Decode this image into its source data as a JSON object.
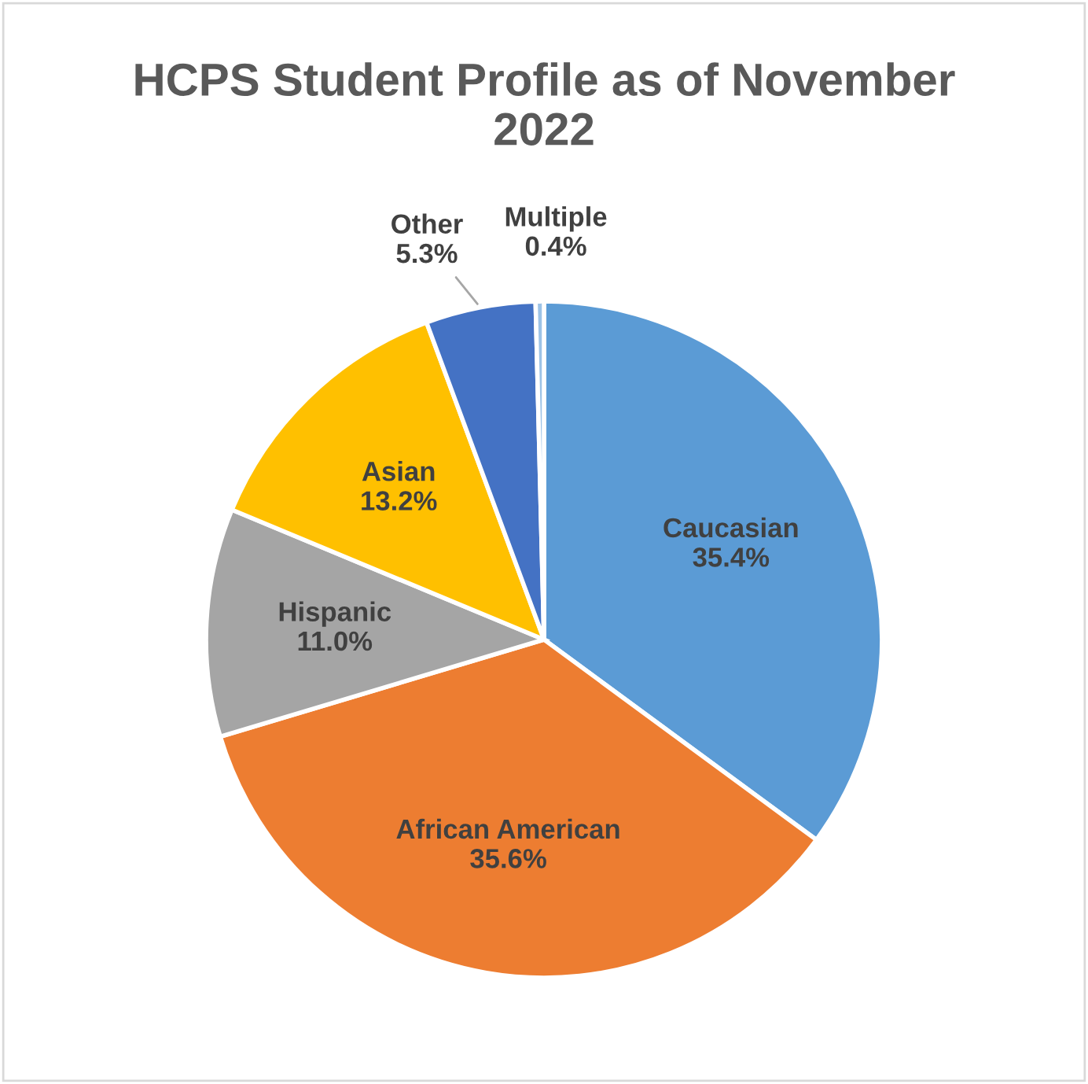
{
  "chart_data": {
    "type": "pie",
    "title": "HCPS Student Profile as of November 2022",
    "categories": [
      "Caucasian",
      "African American",
      "Hispanic",
      "Asian",
      "Other",
      "Multiple"
    ],
    "values": [
      35.4,
      35.6,
      11.0,
      13.2,
      5.3,
      0.4
    ],
    "value_labels": [
      "35.4%",
      "35.6%",
      "11.0%",
      "13.2%",
      "5.3%",
      "0.4%"
    ],
    "colors": [
      "#5b9bd5",
      "#ed7d31",
      "#a5a5a5",
      "#ffc000",
      "#4472c4",
      "#9dc3e6"
    ],
    "legend": false
  }
}
